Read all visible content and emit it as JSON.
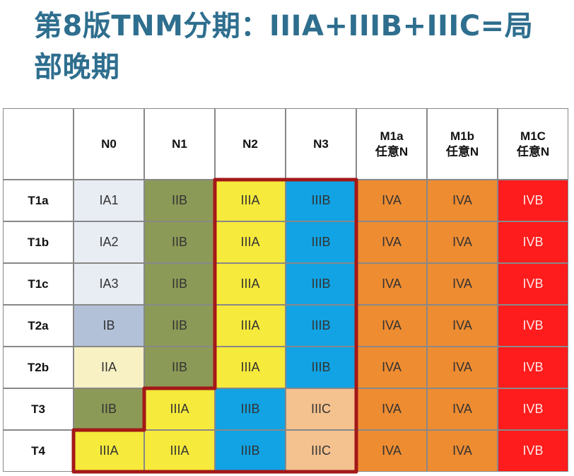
{
  "title": "第8版TNM分期：IIIA+IIIB+IIIC=局部晚期",
  "columns": [
    {
      "label": "",
      "sub": ""
    },
    {
      "label": "N0",
      "sub": ""
    },
    {
      "label": "N1",
      "sub": ""
    },
    {
      "label": "N2",
      "sub": ""
    },
    {
      "label": "N3",
      "sub": ""
    },
    {
      "label": "M1a",
      "sub": "任意N"
    },
    {
      "label": "M1b",
      "sub": "任意N"
    },
    {
      "label": "M1C",
      "sub": "任意N"
    }
  ],
  "rows": [
    {
      "label": "T1a",
      "cells": [
        "IA1",
        "IIB",
        "IIIA",
        "IIIB",
        "IVA",
        "IVA",
        "IVB"
      ]
    },
    {
      "label": "T1b",
      "cells": [
        "IA2",
        "IIB",
        "IIIA",
        "IIIB",
        "IVA",
        "IVA",
        "IVB"
      ]
    },
    {
      "label": "T1c",
      "cells": [
        "IA3",
        "IIB",
        "IIIA",
        "IIIB",
        "IVA",
        "IVA",
        "IVB"
      ]
    },
    {
      "label": "T2a",
      "cells": [
        "IB",
        "IIB",
        "IIIA",
        "IIIB",
        "IVA",
        "IVA",
        "IVB"
      ]
    },
    {
      "label": "T2b",
      "cells": [
        "IIA",
        "IIB",
        "IIIA",
        "IIIB",
        "IVA",
        "IVA",
        "IVB"
      ]
    },
    {
      "label": "T3",
      "cells": [
        "IIB",
        "IIIA",
        "IIIB",
        "IIIC",
        "IVA",
        "IVA",
        "IVB"
      ]
    },
    {
      "label": "T4",
      "cells": [
        "IIIA",
        "IIIA",
        "IIIB",
        "IIIC",
        "IVA",
        "IVA",
        "IVB"
      ]
    }
  ],
  "stage_colors": {
    "IA1": "#e8ecf3",
    "IA2": "#e8ecf3",
    "IA3": "#e8ecf3",
    "IB": "#b3c1d8",
    "IIA": "#f7f1c4",
    "IIB": "#8c9a57",
    "IIIA": "#f6ea3c",
    "IIIB": "#11a3e3",
    "IIIC": "#f4c28f",
    "IVA": "#ee8c31",
    "IVB": "#ff1c1c"
  },
  "stage_text_colors": {
    "IVB": "#fde7e7"
  },
  "highlight_color": "#a31818"
}
